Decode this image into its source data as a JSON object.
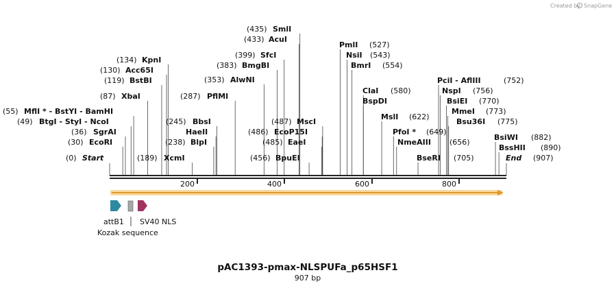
{
  "credit": {
    "text": "Created by",
    "brand": "SnapGene"
  },
  "title": "pAC1393-pmax-NLSPUFa_p65HSF1",
  "length_label": "907 bp",
  "sequence_length": 907,
  "ends": {
    "start": {
      "label": "Start",
      "position": "(0)"
    },
    "end": {
      "label": "End",
      "position": "(907)"
    }
  },
  "ticks": [
    {
      "value": 200,
      "label": "200"
    },
    {
      "value": 400,
      "label": "400"
    },
    {
      "value": 600,
      "label": "600"
    },
    {
      "value": 800,
      "label": "800"
    }
  ],
  "sites": [
    {
      "name": "SmlI",
      "position": "(435)",
      "bp": 435
    },
    {
      "name": "AcuI",
      "position": "(433)",
      "bp": 433
    },
    {
      "name": "SfcI",
      "position": "(399)",
      "bp": 399
    },
    {
      "name": "BmgBI",
      "position": "(383)",
      "bp": 383
    },
    {
      "name": "AlwNI",
      "position": "(353)",
      "bp": 353
    },
    {
      "name": "PflMI",
      "position": "(287)",
      "bp": 287
    },
    {
      "name": "KpnI",
      "position": "(134)",
      "bp": 134
    },
    {
      "name": "Acc65I",
      "position": "(130)",
      "bp": 130
    },
    {
      "name": "BstBI",
      "position": "(119)",
      "bp": 119
    },
    {
      "name": "XbaI",
      "position": "(87)",
      "bp": 87
    },
    {
      "name": "MflI * - BstYI - BamHI",
      "position": "(55)",
      "bp": 55
    },
    {
      "name": "BtgI - StyI - NcoI",
      "position": "(49)",
      "bp": 49
    },
    {
      "name": "SgrAI",
      "position": "(36)",
      "bp": 36
    },
    {
      "name": "EcoRI",
      "position": "(30)",
      "bp": 30
    },
    {
      "name": "XcmI",
      "position": "(189)",
      "bp": 189
    },
    {
      "name": "BbsI",
      "position": "(245)",
      "bp": 245
    },
    {
      "name": "HaeII",
      "position": "",
      "bp": 243
    },
    {
      "name": "BlpI",
      "position": "(238)",
      "bp": 238
    },
    {
      "name": "MscI",
      "position": "(487)",
      "bp": 487
    },
    {
      "name": "EcoP15I",
      "position": "(486)",
      "bp": 486
    },
    {
      "name": "EaeI",
      "position": "(485)",
      "bp": 485
    },
    {
      "name": "BpuEI",
      "position": "(456)",
      "bp": 456
    },
    {
      "name": "PmlI",
      "position": "(527)",
      "bp": 527
    },
    {
      "name": "NsiI",
      "position": "(543)",
      "bp": 543
    },
    {
      "name": "BmrI",
      "position": "(554)",
      "bp": 554
    },
    {
      "name": "ClaI",
      "position": "(580)",
      "bp": 580
    },
    {
      "name": "BspDI",
      "position": "",
      "bp": 580
    },
    {
      "name": "MslI",
      "position": "(622)",
      "bp": 622
    },
    {
      "name": "PfoI *",
      "position": "(649)",
      "bp": 649
    },
    {
      "name": "NmeAIII",
      "position": "(656)",
      "bp": 656
    },
    {
      "name": "BseRI",
      "position": "(705)",
      "bp": 705
    },
    {
      "name": "PciI - AflIII",
      "position": "(752)",
      "bp": 752
    },
    {
      "name": "NspI",
      "position": "(756)",
      "bp": 756
    },
    {
      "name": "BsiEI",
      "position": "(770)",
      "bp": 770
    },
    {
      "name": "MmeI",
      "position": "(773)",
      "bp": 773
    },
    {
      "name": "Bsu36I",
      "position": "(775)",
      "bp": 775
    },
    {
      "name": "BsiWI",
      "position": "(882)",
      "bp": 882
    },
    {
      "name": "BssHII",
      "position": "(890)",
      "bp": 890
    }
  ],
  "features": [
    {
      "name": "attB1",
      "color": "#2e8aa0",
      "kind": "arrow"
    },
    {
      "name": "Kozak sequence",
      "color": "#a9a9a9",
      "kind": "box"
    },
    {
      "name": "SV40 NLS",
      "color": "#a0335f",
      "kind": "arrow"
    }
  ],
  "colors": {
    "orf": "#f5b041",
    "orf_border": "#f7d9a0",
    "backbone": "#222222"
  }
}
